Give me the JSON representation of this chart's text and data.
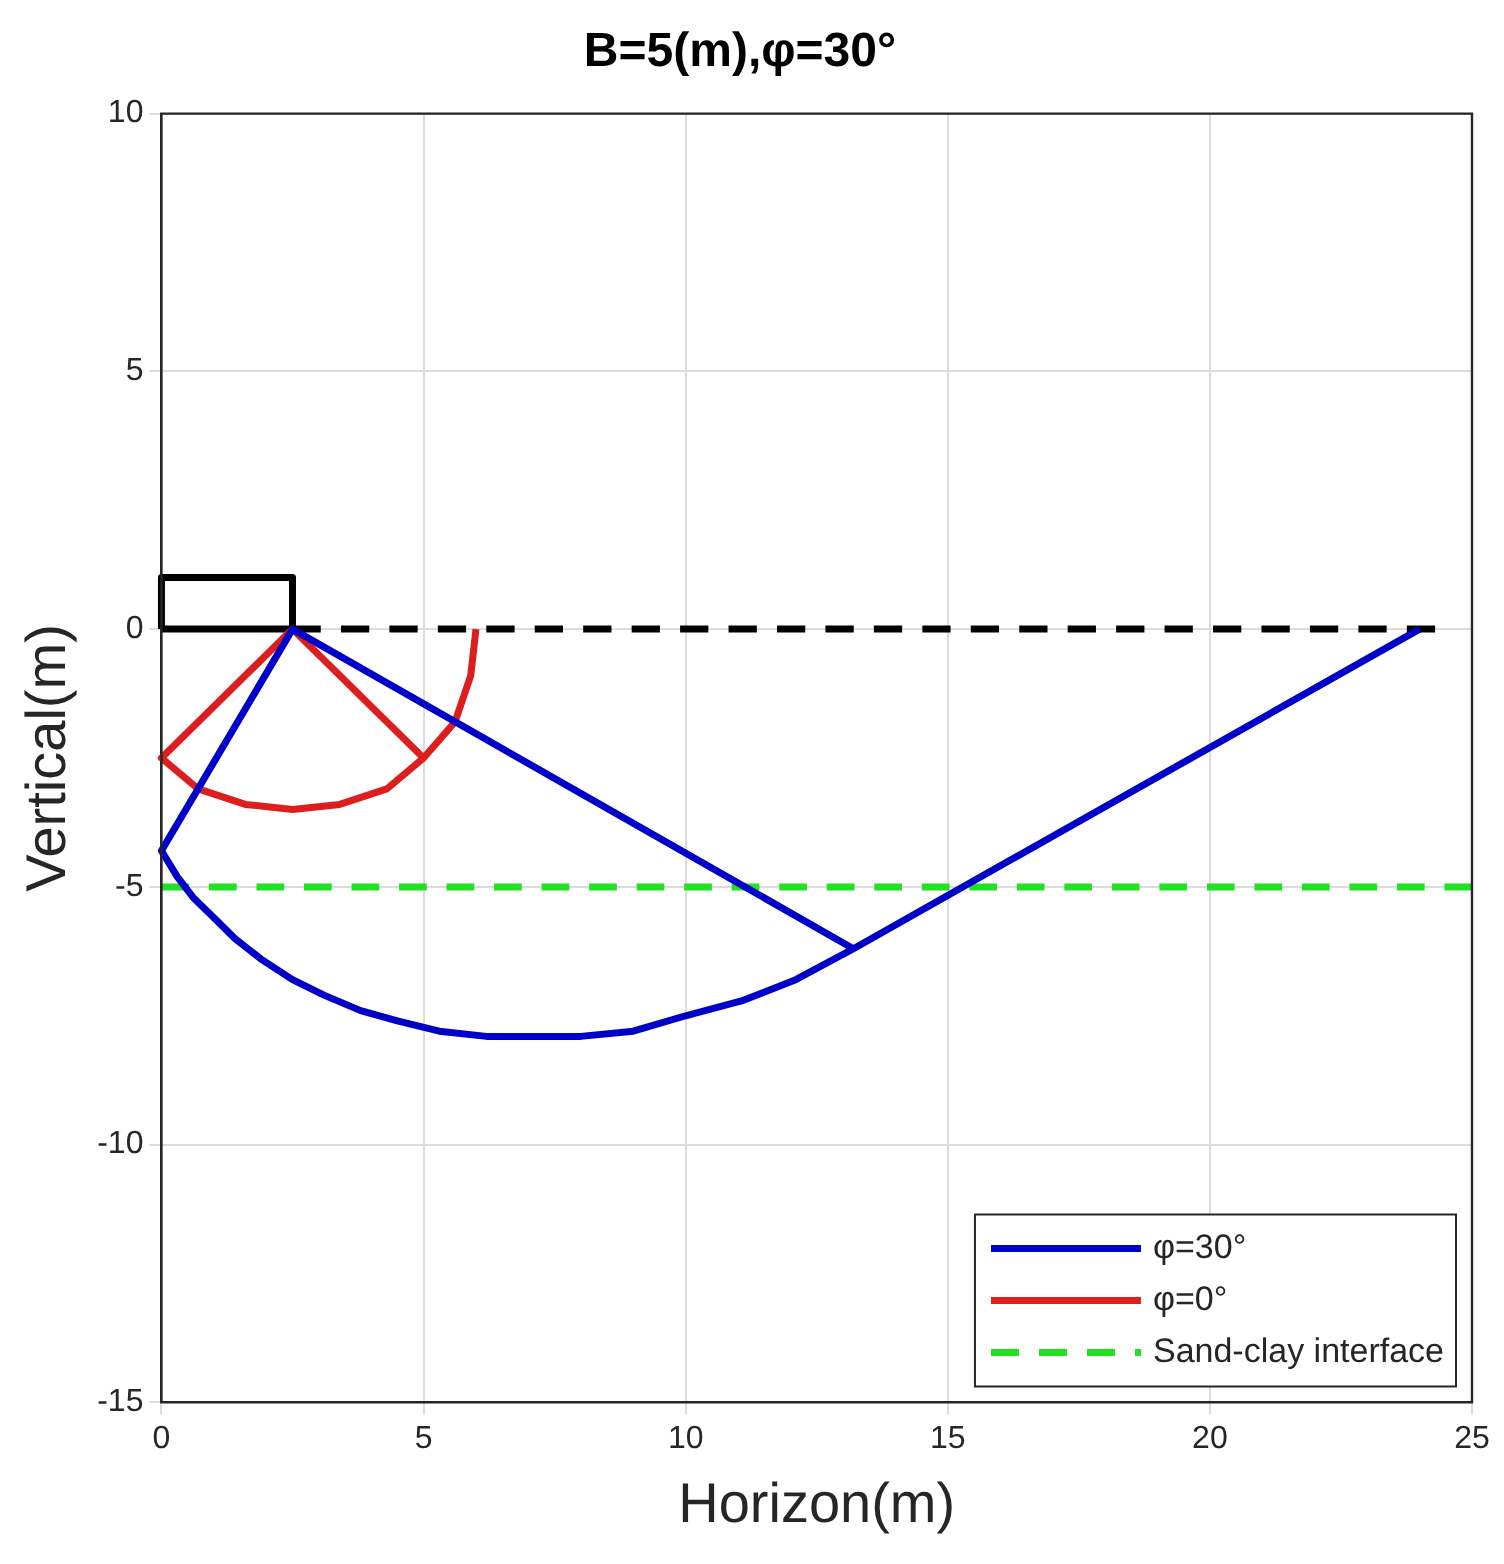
{
  "chart_data": {
    "type": "line",
    "title": "B=5(m),φ=30°",
    "xlabel": "Horizon(m)",
    "ylabel": "Vertical(m)",
    "xlim": [
      0,
      25
    ],
    "xticks": [
      0,
      5,
      10,
      15,
      20,
      25
    ],
    "ylim": [
      -15,
      10
    ],
    "yticks": [
      -15,
      -10,
      -5,
      0,
      5,
      10
    ],
    "grid": true,
    "legend": "bottom right",
    "marker": "none",
    "series": [
      {
        "name": "φ=30°",
        "color": "#0000c8",
        "line_style": "solid",
        "x": [
          24,
          13.2,
          2.5,
          0,
          0.3,
          0.6,
          1.0,
          1.4,
          1.9,
          2.5,
          3.1,
          3.8,
          4.5,
          5.3,
          6.2,
          7.1,
          8.0,
          9.0,
          10.0,
          11.1,
          12.1,
          13.2
        ],
        "values": [
          0,
          -6.2,
          0,
          -4.3,
          -4.8,
          -5.2,
          -5.6,
          -6.0,
          -6.4,
          -6.8,
          -7.1,
          -7.4,
          -7.6,
          -7.8,
          -7.9,
          -7.9,
          -7.9,
          -7.8,
          -7.5,
          -7.2,
          -6.8,
          -6.2
        ]
      },
      {
        "name": "φ=0°",
        "color": "#dc1e1e",
        "line_style": "solid",
        "x": [
          5,
          2.5,
          0,
          0.7,
          1.6,
          2.5,
          3.4,
          4.3,
          5,
          5.6,
          5.9,
          6.0
        ],
        "values": [
          -2.5,
          0,
          -2.5,
          -3.1,
          -3.4,
          -3.5,
          -3.4,
          -3.1,
          -2.5,
          -1.8,
          -0.9,
          0
        ]
      },
      {
        "name": "Sand-clay interface",
        "color": "#22e022",
        "line_style": "dashed",
        "x": [
          0,
          25
        ],
        "values": [
          -5,
          -5
        ]
      },
      {
        "color": "#000000",
        "line_style": "dashed",
        "x": [
          2.5,
          24.3
        ],
        "values": [
          0,
          0
        ]
      },
      {
        "color": "#000000",
        "line_style": "solid",
        "x": [
          0,
          0,
          2.5,
          2.5
        ],
        "values": [
          0,
          1,
          1,
          0
        ]
      },
      {
        "color": "#000000",
        "line_style": "solid",
        "x": [
          0,
          2.5
        ],
        "values": [
          0,
          0
        ]
      }
    ]
  }
}
